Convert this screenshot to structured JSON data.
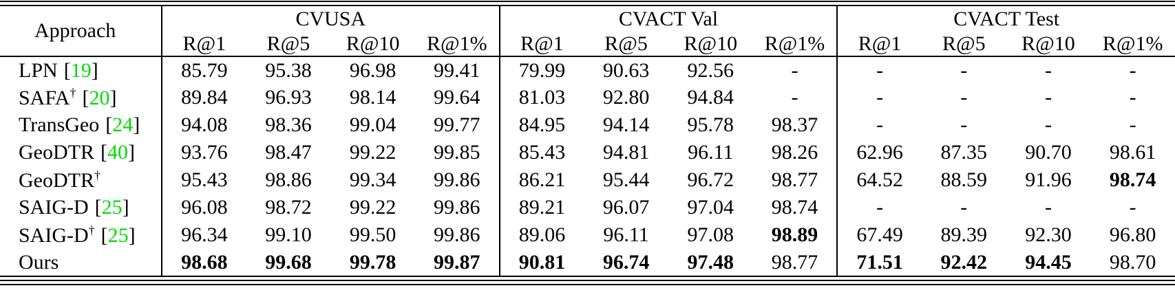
{
  "colors": {
    "citation": "#00dc00",
    "text": "#000000",
    "rule": "#000000",
    "background": "#ffffff"
  },
  "table": {
    "corner_header": "Approach",
    "cite_open": "[",
    "cite_close": "]",
    "dagger_symbol": "†",
    "groups": [
      {
        "label": "CVUSA",
        "subcols": [
          "R@1",
          "R@5",
          "R@10",
          "R@1%"
        ]
      },
      {
        "label": "CVACT Val",
        "subcols": [
          "R@1",
          "R@5",
          "R@10",
          "R@1%"
        ]
      },
      {
        "label": "CVACT Test",
        "subcols": [
          "R@1",
          "R@5",
          "R@10",
          "R@1%"
        ]
      }
    ],
    "rows": [
      {
        "approach": {
          "name": "LPN",
          "sup": "",
          "cite": "19"
        },
        "values": [
          "85.79",
          "95.38",
          "96.98",
          "99.41",
          "79.99",
          "90.63",
          "92.56",
          "-",
          "-",
          "-",
          "-",
          "-"
        ],
        "bold_indices": []
      },
      {
        "approach": {
          "name": "SAFA",
          "sup": "†",
          "cite": "20"
        },
        "values": [
          "89.84",
          "96.93",
          "98.14",
          "99.64",
          "81.03",
          "92.80",
          "94.84",
          "-",
          "-",
          "-",
          "-",
          "-"
        ],
        "bold_indices": []
      },
      {
        "approach": {
          "name": "TransGeo",
          "sup": "",
          "cite": "24"
        },
        "values": [
          "94.08",
          "98.36",
          "99.04",
          "99.77",
          "84.95",
          "94.14",
          "95.78",
          "98.37",
          "-",
          "-",
          "-",
          "-"
        ],
        "bold_indices": []
      },
      {
        "approach": {
          "name": "GeoDTR",
          "sup": "",
          "cite": "40"
        },
        "values": [
          "93.76",
          "98.47",
          "99.22",
          "99.85",
          "85.43",
          "94.81",
          "96.11",
          "98.26",
          "62.96",
          "87.35",
          "90.70",
          "98.61"
        ],
        "bold_indices": []
      },
      {
        "approach": {
          "name": "GeoDTR",
          "sup": "†",
          "cite": ""
        },
        "values": [
          "95.43",
          "98.86",
          "99.34",
          "99.86",
          "86.21",
          "95.44",
          "96.72",
          "98.77",
          "64.52",
          "88.59",
          "91.96",
          "98.74"
        ],
        "bold_indices": [
          11
        ]
      },
      {
        "approach": {
          "name": "SAIG-D",
          "sup": "",
          "cite": "25"
        },
        "values": [
          "96.08",
          "98.72",
          "99.22",
          "99.86",
          "89.21",
          "96.07",
          "97.04",
          "98.74",
          "-",
          "-",
          "-",
          "-"
        ],
        "bold_indices": []
      },
      {
        "approach": {
          "name": "SAIG-D",
          "sup": "†",
          "cite": "25"
        },
        "values": [
          "96.34",
          "99.10",
          "99.50",
          "99.86",
          "89.06",
          "96.11",
          "97.08",
          "98.89",
          "67.49",
          "89.39",
          "92.30",
          "96.80"
        ],
        "bold_indices": [
          7
        ]
      },
      {
        "approach": {
          "name": "Ours",
          "sup": "",
          "cite": ""
        },
        "values": [
          "98.68",
          "99.68",
          "99.78",
          "99.87",
          "90.81",
          "96.74",
          "97.48",
          "98.77",
          "71.51",
          "92.42",
          "94.45",
          "98.70"
        ],
        "bold_indices": [
          0,
          1,
          2,
          3,
          4,
          5,
          6,
          8,
          9,
          10
        ]
      }
    ]
  }
}
